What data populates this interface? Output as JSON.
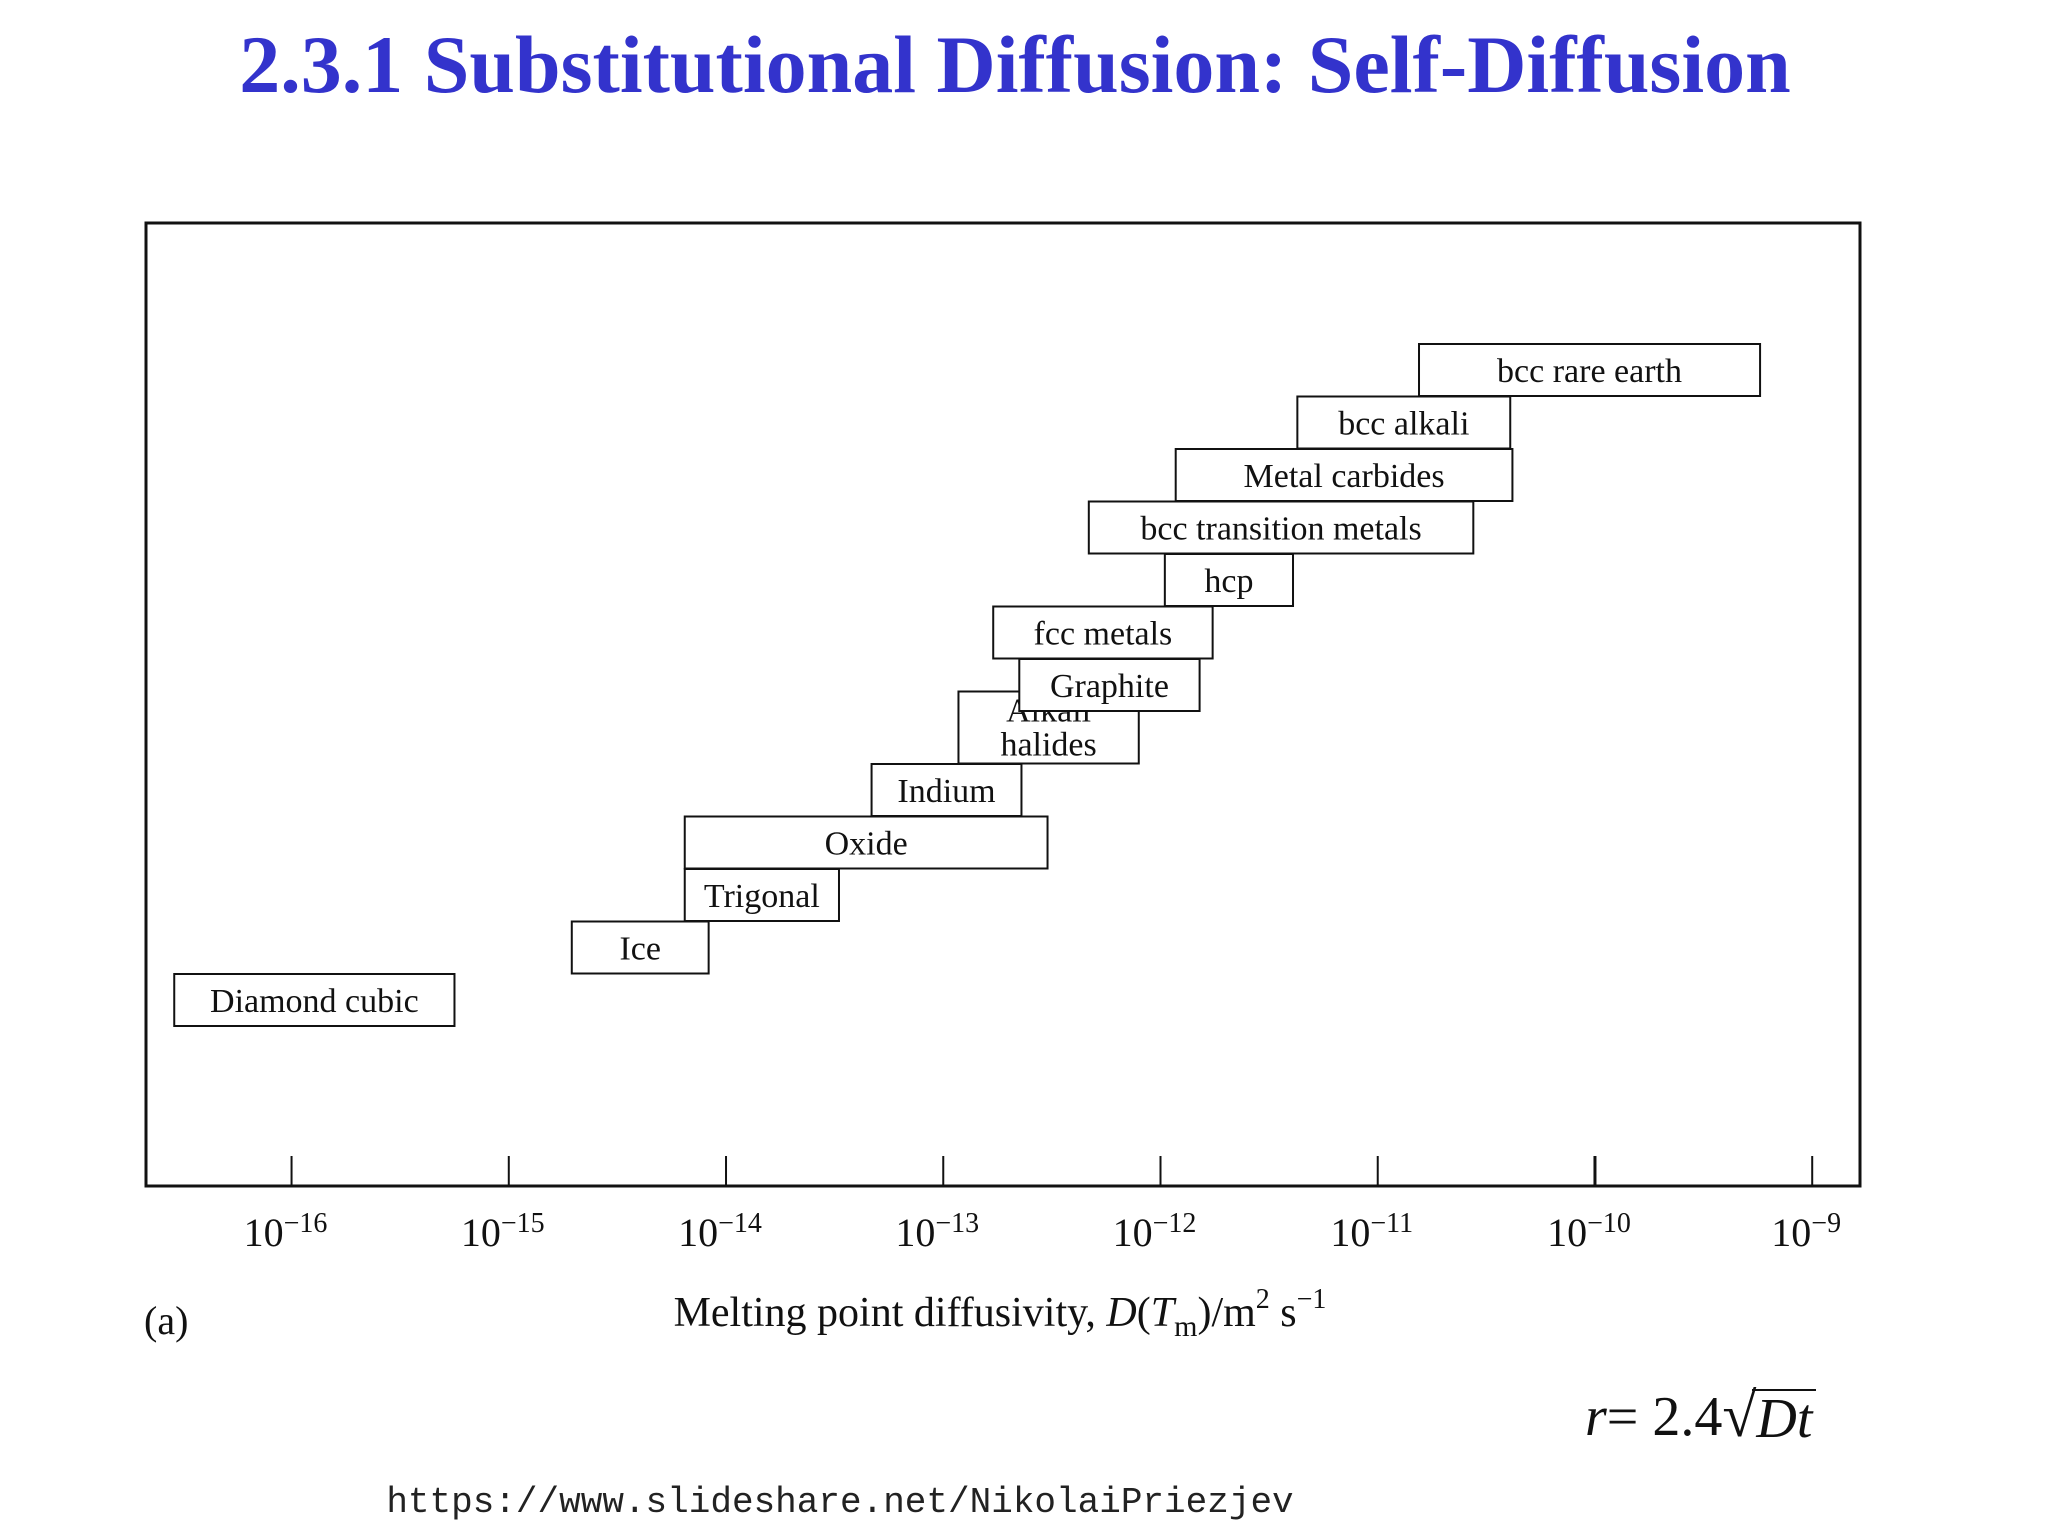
{
  "slide": {
    "title": "2.3.1 Substitutional Diffusion: Self-Diffusion",
    "title_color": "#3333cc",
    "formula": {
      "lhs": "r",
      "eq": " = 2.4",
      "radicand": "Dt"
    },
    "source_url": "https://www.slideshare.net/NikolaiPriezjev"
  },
  "chart_data": {
    "type": "bar",
    "subtype": "floating-range",
    "panel_label": "(a)",
    "xlabel": "Melting point diffusivity, D(Tm)/m² s⁻¹",
    "xlabel_parts": {
      "pre": "Melting point diffusivity, ",
      "D": "D",
      "open": "(",
      "T": "T",
      "sub": "m",
      "mid": ")/m",
      "sq": "2",
      "s": " s",
      "exp": "−1"
    },
    "xscale": "log",
    "xlim_log10": [
      -16.67,
      -8.78
    ],
    "xticks": [
      {
        "exp": -16,
        "label_base": "10",
        "label_exp": "−16"
      },
      {
        "exp": -15,
        "label_base": "10",
        "label_exp": "−15"
      },
      {
        "exp": -14,
        "label_base": "10",
        "label_exp": "−14"
      },
      {
        "exp": -13,
        "label_base": "10",
        "label_exp": "−13"
      },
      {
        "exp": -12,
        "label_base": "10",
        "label_exp": "−12"
      },
      {
        "exp": -11,
        "label_base": "10",
        "label_exp": "−11"
      },
      {
        "exp": -10,
        "label_base": "10",
        "label_exp": "−10"
      },
      {
        "exp": -9,
        "label_base": "10",
        "label_exp": "−9"
      }
    ],
    "ranges": [
      {
        "label": "Diamond cubic",
        "log10_from": -16.54,
        "log10_to": -15.25
      },
      {
        "label": "Ice",
        "log10_from": -14.71,
        "log10_to": -14.08
      },
      {
        "label": "Trigonal",
        "log10_from": -14.19,
        "log10_to": -13.48
      },
      {
        "label": "Oxide",
        "log10_from": -14.19,
        "log10_to": -12.52
      },
      {
        "label": "Indium",
        "log10_from": -13.33,
        "log10_to": -12.64
      },
      {
        "label": "Alkali halides",
        "lines": [
          "Alkali",
          "halides"
        ],
        "log10_from": -12.93,
        "log10_to": -12.1
      },
      {
        "label": "Graphite",
        "log10_from": -12.65,
        "log10_to": -11.82
      },
      {
        "label": "fcc metals",
        "log10_from": -12.77,
        "log10_to": -11.76
      },
      {
        "label": "hcp",
        "log10_from": -11.98,
        "log10_to": -11.39
      },
      {
        "label": "bcc transition metals",
        "log10_from": -12.33,
        "log10_to": -10.56
      },
      {
        "label": "Metal carbides",
        "log10_from": -11.93,
        "log10_to": -10.38
      },
      {
        "label": "bcc alkali",
        "log10_from": -11.37,
        "log10_to": -10.39
      },
      {
        "label": "bcc rare earth",
        "log10_from": -10.81,
        "log10_to": -9.24
      }
    ],
    "grid": false,
    "legend": "none"
  }
}
